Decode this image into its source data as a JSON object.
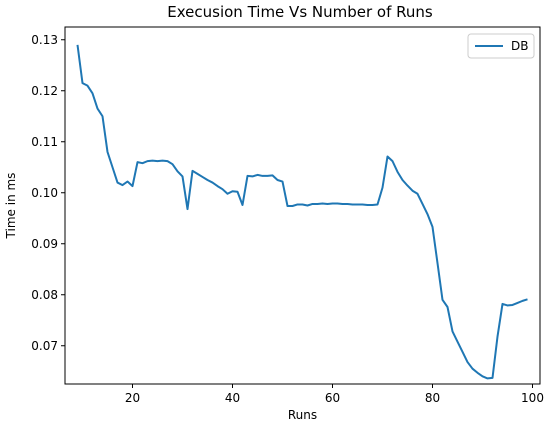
{
  "chart_data": {
    "type": "line",
    "title": "Execusion Time Vs Number of Runs",
    "xlabel": "Runs",
    "ylabel": "Time in ms",
    "xlim": [
      6.5,
      101.5
    ],
    "ylim": [
      0.0625,
      0.1325
    ],
    "xticks": [
      20,
      40,
      60,
      80,
      100
    ],
    "yticks": [
      0.07,
      0.08,
      0.09,
      0.1,
      0.11,
      0.12,
      0.13
    ],
    "xtick_labels": [
      "20",
      "40",
      "60",
      "80",
      "100"
    ],
    "ytick_labels": [
      "0.07",
      "0.08",
      "0.09",
      "0.10",
      "0.11",
      "0.12",
      "0.13"
    ],
    "grid": false,
    "legend_position": "top-right",
    "series": [
      {
        "name": "DB",
        "color": "#1f77b4",
        "x": [
          9,
          10,
          11,
          12,
          13,
          14,
          15,
          16,
          17,
          18,
          19,
          20,
          21,
          22,
          23,
          24,
          25,
          26,
          27,
          28,
          29,
          30,
          31,
          32,
          33,
          34,
          35,
          36,
          37,
          38,
          39,
          40,
          41,
          42,
          43,
          44,
          45,
          46,
          47,
          48,
          49,
          50,
          51,
          52,
          53,
          54,
          55,
          56,
          57,
          58,
          59,
          60,
          61,
          62,
          63,
          64,
          65,
          66,
          67,
          68,
          69,
          70,
          71,
          72,
          73,
          74,
          75,
          76,
          77,
          78,
          79,
          80,
          81,
          82,
          83,
          84,
          85,
          86,
          87,
          88,
          89,
          90,
          91,
          92,
          93,
          94,
          95,
          96,
          97,
          98,
          99
        ],
        "y": [
          0.129,
          0.1215,
          0.121,
          0.1195,
          0.1165,
          0.115,
          0.108,
          0.105,
          0.102,
          0.1015,
          0.1022,
          0.1013,
          0.106,
          0.1058,
          0.1062,
          0.1063,
          0.1062,
          0.1063,
          0.1062,
          0.1056,
          0.1042,
          0.1032,
          0.0968,
          0.1043,
          0.1037,
          0.1031,
          0.1025,
          0.102,
          0.1013,
          0.1007,
          0.0998,
          0.1003,
          0.1002,
          0.0976,
          0.1033,
          0.1032,
          0.1035,
          0.1033,
          0.1033,
          0.1034,
          0.1025,
          0.1022,
          0.0974,
          0.0974,
          0.0977,
          0.0977,
          0.0975,
          0.0978,
          0.0978,
          0.0979,
          0.0978,
          0.0979,
          0.0979,
          0.0978,
          0.0978,
          0.0977,
          0.0977,
          0.0977,
          0.0976,
          0.0976,
          0.0977,
          0.101,
          0.1071,
          0.1062,
          0.1041,
          0.1025,
          0.1014,
          0.1004,
          0.0998,
          0.0978,
          0.0958,
          0.0933,
          0.0862,
          0.079,
          0.0776,
          0.0728,
          0.0708,
          0.0688,
          0.0668,
          0.0655,
          0.0647,
          0.064,
          0.0636,
          0.0637,
          0.0718,
          0.0782,
          0.0779,
          0.078,
          0.0784,
          0.0788,
          0.0791
        ]
      }
    ]
  }
}
